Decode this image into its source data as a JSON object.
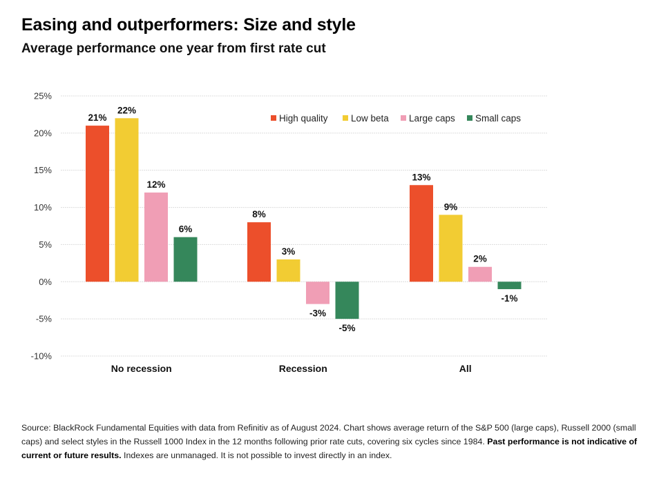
{
  "header": {
    "title": "Easing and outperformers: Size and style",
    "subtitle": "Average performance one year from first rate cut"
  },
  "chart_data": {
    "type": "bar",
    "title": "Easing and outperformers: Size and style",
    "subtitle": "Average performance one year from first rate cut",
    "xlabel": "",
    "ylabel": "",
    "categories": [
      "No recession",
      "Recession",
      "All"
    ],
    "series": [
      {
        "name": "High quality",
        "color": "#EC4F2B",
        "values": [
          21,
          8,
          13
        ],
        "labels": [
          "21%",
          "8%",
          "13%"
        ]
      },
      {
        "name": "Low beta",
        "color": "#F2CC33",
        "values": [
          22,
          3,
          9
        ],
        "labels": [
          "22%",
          "3%",
          "9%"
        ]
      },
      {
        "name": "Large caps",
        "color": "#F09EB5",
        "values": [
          12,
          -3,
          2
        ],
        "labels": [
          "12%",
          "-3%",
          "2%"
        ]
      },
      {
        "name": "Small caps",
        "color": "#35875B",
        "values": [
          6,
          -5,
          -1
        ],
        "labels": [
          "6%",
          "-5%",
          "-1%"
        ]
      }
    ],
    "ylim": [
      -10,
      25
    ],
    "yticks": [
      25,
      20,
      15,
      10,
      5,
      0,
      -5,
      -10
    ],
    "ytick_labels": [
      "25%",
      "20%",
      "15%",
      "10%",
      "5%",
      "0%",
      "-5%",
      "-10%"
    ],
    "grid": true,
    "legend_position": "top-right"
  },
  "footnote": {
    "text1": "Source: BlackRock Fundamental Equities with data from Refinitiv as of August 2024. Chart shows average return of the S&P 500 (large caps), Russell 2000 (small caps) and select styles in the Russell 1000 Index in the 12 months following prior rate cuts, covering six cycles since 1984. ",
    "bold": "Past performance is not indicative of current or future results.",
    "text2": " Indexes are unmanaged. It is not possible to invest directly in an index."
  }
}
